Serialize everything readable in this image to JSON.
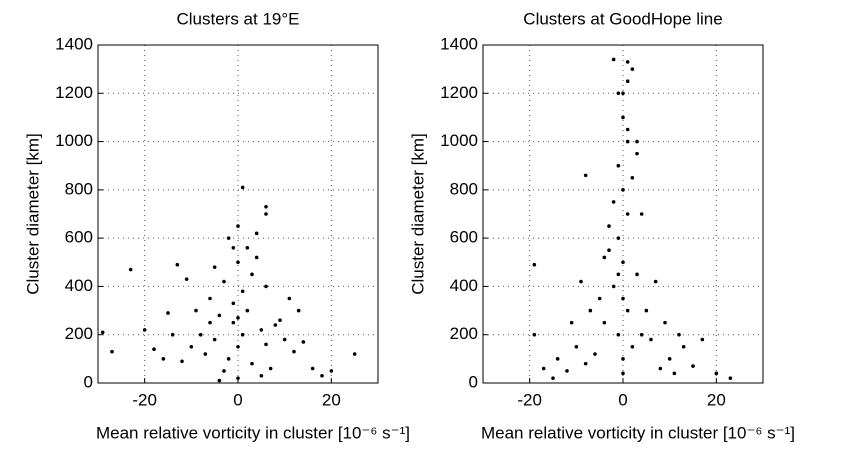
{
  "chart_data": [
    {
      "type": "scatter",
      "title": "Clusters at 19°E",
      "xlabel": "Mean relative vorticity in cluster [10⁻⁶ s⁻¹]",
      "ylabel": "Cluster diameter [km]",
      "color": "#000000",
      "grid": true,
      "xlim": [
        -30,
        30
      ],
      "ylim": [
        0,
        1400
      ],
      "xticks": [
        -20,
        0,
        20
      ],
      "yticks": [
        0,
        200,
        400,
        600,
        800,
        1000,
        1200,
        1400
      ],
      "x": [
        -2,
        0,
        1,
        -3,
        3,
        -5,
        5,
        -1,
        2,
        -4,
        6,
        -7,
        7,
        -8,
        8,
        -10,
        10,
        -12,
        12,
        0,
        -1,
        1,
        -3,
        3,
        0,
        2,
        -2,
        4,
        -6,
        6,
        -9,
        9,
        -14,
        14,
        -16,
        16,
        -18,
        18,
        1,
        6,
        6,
        -5,
        -13,
        -23,
        -29,
        25,
        20,
        -27,
        -20,
        -11,
        11,
        0,
        -1,
        4,
        -15,
        13,
        -4,
        5,
        -6,
        0
      ],
      "values": [
        100,
        150,
        200,
        50,
        80,
        180,
        220,
        250,
        300,
        280,
        160,
        120,
        60,
        200,
        240,
        150,
        180,
        90,
        130,
        20,
        330,
        380,
        420,
        450,
        500,
        560,
        600,
        520,
        350,
        400,
        300,
        260,
        200,
        170,
        100,
        60,
        140,
        30,
        810,
        730,
        700,
        480,
        490,
        470,
        210,
        120,
        50,
        130,
        220,
        430,
        350,
        650,
        560,
        620,
        290,
        300,
        10,
        30,
        250,
        270
      ]
    },
    {
      "type": "scatter",
      "title": "Clusters at GoodHope line",
      "xlabel": "Mean relative vorticity in cluster [10⁻⁶ s⁻¹]",
      "ylabel": "Cluster diameter [km]",
      "color": "#000000",
      "grid": true,
      "xlim": [
        -30,
        30
      ],
      "ylim": [
        0,
        1400
      ],
      "xticks": [
        -20,
        0,
        20
      ],
      "yticks": [
        0,
        200,
        400,
        600,
        800,
        1000,
        1200,
        1400
      ],
      "x": [
        0,
        -1,
        1,
        -2,
        2,
        0,
        -1,
        1,
        0,
        -1,
        1,
        0,
        -1,
        1,
        2,
        -2,
        3,
        -3,
        0,
        -4,
        4,
        -6,
        6,
        -8,
        8,
        -10,
        10,
        -12,
        12,
        -14,
        15,
        -5,
        5,
        -3,
        3,
        -19,
        -19,
        -17,
        20,
        23,
        -8,
        1,
        -2,
        2,
        -9,
        7,
        9,
        -7,
        1,
        -1,
        0,
        0,
        3,
        4,
        -4,
        13,
        -11,
        17,
        11,
        -15
      ],
      "values": [
        100,
        200,
        300,
        400,
        150,
        500,
        600,
        700,
        800,
        900,
        1000,
        1100,
        1200,
        1250,
        850,
        750,
        950,
        650,
        40,
        250,
        200,
        120,
        180,
        80,
        60,
        150,
        100,
        50,
        200,
        100,
        70,
        350,
        300,
        550,
        450,
        490,
        200,
        60,
        40,
        20,
        860,
        1330,
        1340,
        1300,
        420,
        420,
        250,
        300,
        1050,
        450,
        350,
        1200,
        1000,
        700,
        520,
        150,
        250,
        180,
        40,
        20
      ]
    }
  ]
}
